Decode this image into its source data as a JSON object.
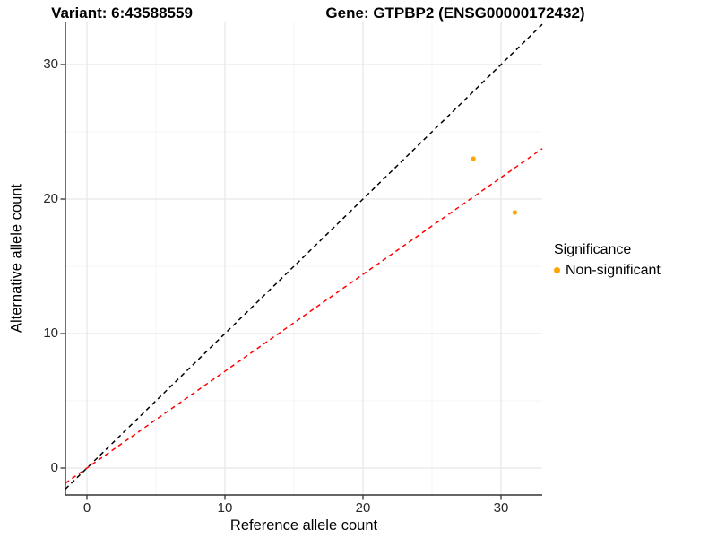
{
  "chart_data": {
    "type": "scatter",
    "titles": {
      "left": "Variant: 6:43588559",
      "right": "Gene: GTPBP2 (ENSG00000172432)"
    },
    "xlabel": "Reference allele count",
    "ylabel": "Alternative allele count",
    "x_ticks": [
      0,
      10,
      20,
      30
    ],
    "y_ticks": [
      0,
      10,
      20,
      30
    ],
    "x_minor_gridlines": [
      5,
      15,
      25
    ],
    "y_minor_gridlines": [
      5,
      15,
      25
    ],
    "xlim": [
      -1.6,
      33.0
    ],
    "ylim": [
      -2.0,
      33.1
    ],
    "grid": "major_and_minor",
    "points": [
      {
        "x": 28,
        "y": 23,
        "significance": "Non-significant"
      },
      {
        "x": 31,
        "y": 19,
        "significance": "Non-significant"
      }
    ],
    "ablines": [
      {
        "name": "identity-line",
        "slope": 1.0,
        "intercept": 0,
        "color": "#000000",
        "linetype": "dashed"
      },
      {
        "name": "allelic-ratio-line",
        "slope": 0.72,
        "intercept": 0,
        "color": "#ff0000",
        "linetype": "dashed"
      }
    ],
    "legend": {
      "title": "Significance",
      "position": "right",
      "entries": [
        {
          "label": "Non-significant",
          "color": "#FFA500"
        }
      ]
    },
    "colors": {
      "point": "#FFA500",
      "major_grid": "#e6e6e6",
      "minor_grid": "#f2f2f2",
      "axis": "#333333"
    }
  }
}
